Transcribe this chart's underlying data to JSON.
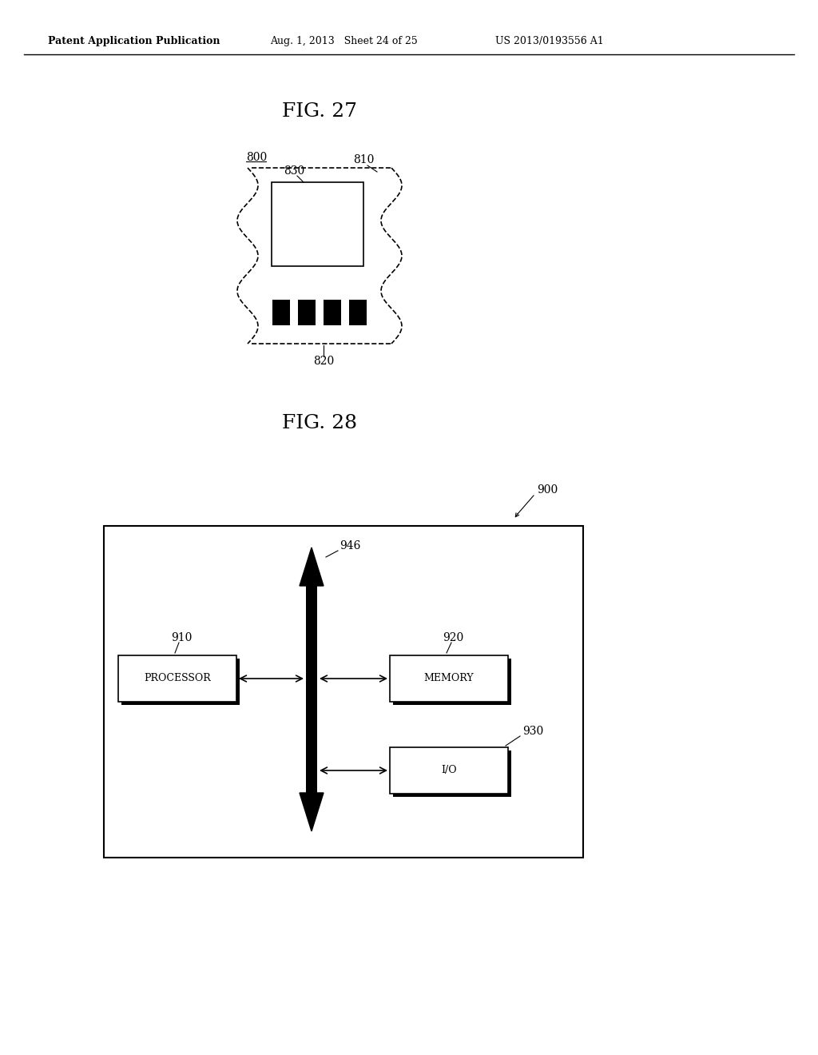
{
  "bg_color": "#ffffff",
  "header_left": "Patent Application Publication",
  "header_mid": "Aug. 1, 2013   Sheet 24 of 25",
  "header_right": "US 2013/0193556 A1",
  "fig27_title": "FIG. 27",
  "fig28_title": "FIG. 28",
  "label_800": "800",
  "label_810": "810",
  "label_820": "820",
  "label_830": "830",
  "label_900": "900",
  "label_910": "910",
  "label_920": "920",
  "label_930": "930",
  "label_946": "946",
  "text_processor": "PROCESSOR",
  "text_memory": "MEMORY",
  "text_io": "I/O"
}
